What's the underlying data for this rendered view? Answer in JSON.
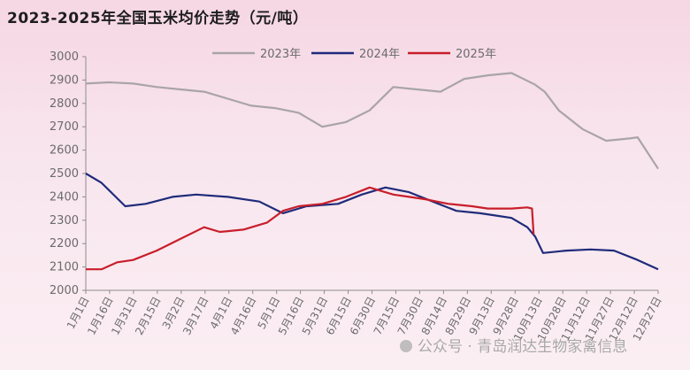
{
  "title": "2023-2025年全国玉米均价走势（元/吨）",
  "watermark": "公众号 · 青岛润达生物家禽信息",
  "chart_data": {
    "type": "line",
    "title": "2023-2025年全国玉米均价走势（元/吨）",
    "ylim": [
      2000,
      3000
    ],
    "yticks": [
      2000,
      2100,
      2200,
      2300,
      2400,
      2500,
      2600,
      2700,
      2800,
      2900,
      3000
    ],
    "categories": [
      "1月1日",
      "1月16日",
      "1月31日",
      "2月15日",
      "3月2日",
      "3月17日",
      "4月1日",
      "4月16日",
      "5月1日",
      "5月16日",
      "5月31日",
      "6月15日",
      "6月30日",
      "7月15日",
      "7月30日",
      "8月14日",
      "8月29日",
      "9月13日",
      "9月28日",
      "10月13日",
      "10月28日",
      "11月12日",
      "11月27日",
      "12月12日",
      "12月27日"
    ],
    "x_last_day": 363,
    "legend_position": "top-center",
    "grid": false,
    "series": [
      {
        "name": "2023年",
        "color": "#a9a4a8",
        "x": [
          0,
          15,
          30,
          45,
          60,
          75,
          90,
          105,
          120,
          135,
          150,
          165,
          180,
          195,
          210,
          225,
          240,
          255,
          270,
          285,
          291,
          300,
          315,
          330,
          345,
          350,
          363
        ],
        "values": [
          2885,
          2890,
          2885,
          2870,
          2860,
          2850,
          2820,
          2790,
          2780,
          2760,
          2700,
          2720,
          2770,
          2870,
          2860,
          2850,
          2905,
          2920,
          2930,
          2880,
          2850,
          2770,
          2690,
          2640,
          2650,
          2655,
          2520
        ]
      },
      {
        "name": "2024年",
        "color": "#1f2b7a",
        "x": [
          0,
          10,
          25,
          38,
          55,
          70,
          90,
          110,
          125,
          140,
          160,
          175,
          190,
          205,
          220,
          235,
          250,
          260,
          270,
          280,
          285,
          290,
          305,
          320,
          335,
          350,
          363
        ],
        "values": [
          2500,
          2460,
          2360,
          2370,
          2400,
          2410,
          2400,
          2380,
          2330,
          2360,
          2370,
          2410,
          2440,
          2420,
          2380,
          2340,
          2330,
          2320,
          2310,
          2270,
          2230,
          2160,
          2170,
          2175,
          2170,
          2130,
          2090
        ]
      },
      {
        "name": "2025年",
        "color": "#c81e2a",
        "x": [
          0,
          10,
          20,
          30,
          45,
          60,
          75,
          85,
          100,
          115,
          125,
          135,
          150,
          165,
          180,
          195,
          205,
          215,
          230,
          245,
          255,
          270,
          280,
          283,
          284
        ],
        "values": [
          2090,
          2090,
          2120,
          2130,
          2170,
          2220,
          2270,
          2250,
          2260,
          2290,
          2340,
          2360,
          2370,
          2400,
          2440,
          2410,
          2400,
          2390,
          2370,
          2360,
          2350,
          2350,
          2355,
          2350,
          2240
        ]
      }
    ]
  }
}
